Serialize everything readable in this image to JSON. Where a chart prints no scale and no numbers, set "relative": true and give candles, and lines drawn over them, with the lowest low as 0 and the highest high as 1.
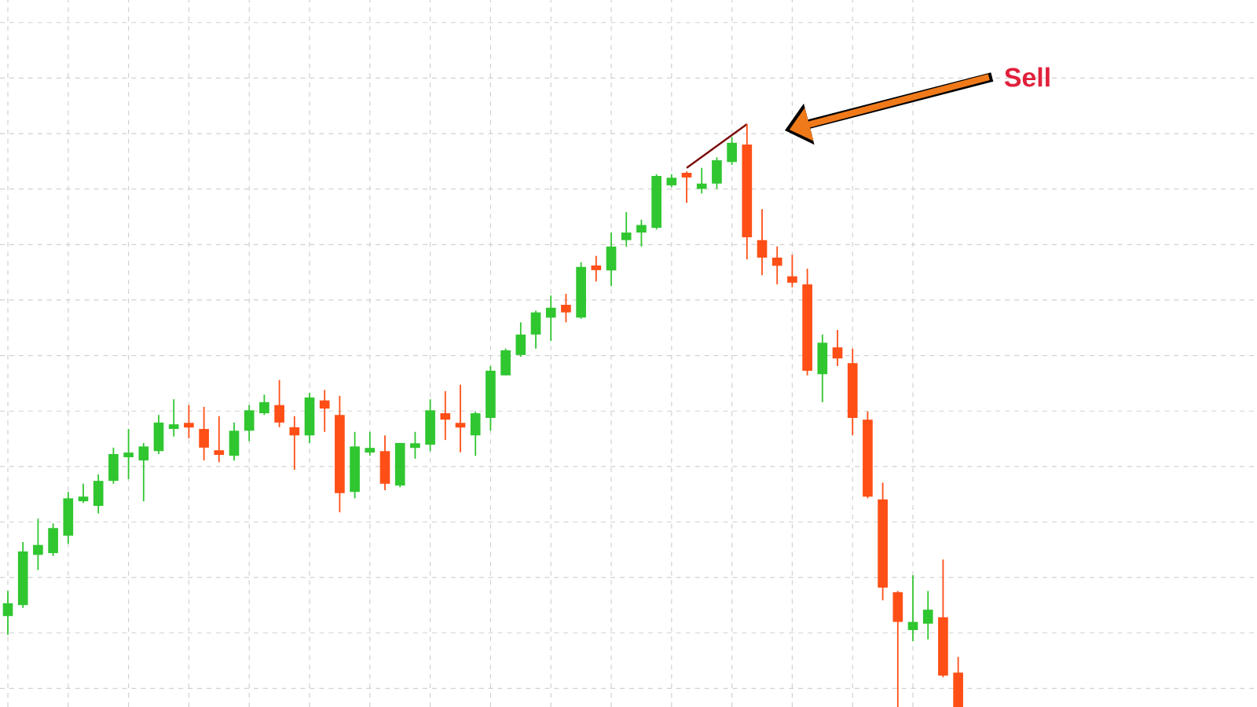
{
  "chart_data": {
    "type": "candlestick",
    "relative": true,
    "grid": true,
    "categories": [
      null,
      null,
      null,
      null,
      null,
      null,
      null,
      null,
      null,
      null,
      null,
      null,
      null,
      null,
      null,
      null,
      null,
      null,
      null,
      null,
      null,
      null,
      null,
      null,
      null,
      null,
      null,
      null,
      null,
      null,
      null,
      null,
      null,
      null,
      null,
      null,
      null,
      null,
      null,
      null,
      null,
      null,
      null,
      null,
      null,
      null,
      null,
      null,
      null,
      null,
      null,
      null,
      null,
      null,
      null,
      null,
      null,
      null,
      null,
      null,
      null,
      null,
      null,
      null
    ],
    "ohlc": [
      [
        0.156,
        0.199,
        0.124,
        0.178
      ],
      [
        0.175,
        0.283,
        0.17,
        0.267
      ],
      [
        0.261,
        0.323,
        0.235,
        0.278
      ],
      [
        0.264,
        0.315,
        0.259,
        0.307
      ],
      [
        0.294,
        0.369,
        0.28,
        0.358
      ],
      [
        0.356,
        0.383,
        0.35,
        0.358
      ],
      [
        0.345,
        0.399,
        0.332,
        0.388
      ],
      [
        0.388,
        0.445,
        0.383,
        0.434
      ],
      [
        0.431,
        0.477,
        0.391,
        0.434
      ],
      [
        0.423,
        0.453,
        0.353,
        0.447
      ],
      [
        0.439,
        0.501,
        0.434,
        0.488
      ],
      [
        0.48,
        0.528,
        0.464,
        0.482
      ],
      [
        0.485,
        0.518,
        0.461,
        0.482
      ],
      [
        0.477,
        0.515,
        0.423,
        0.445
      ],
      [
        0.439,
        0.499,
        0.42,
        0.434
      ],
      [
        0.431,
        0.488,
        0.423,
        0.474
      ],
      [
        0.474,
        0.518,
        0.456,
        0.509
      ],
      [
        0.504,
        0.536,
        0.501,
        0.523
      ],
      [
        0.518,
        0.561,
        0.48,
        0.488
      ],
      [
        0.48,
        0.499,
        0.407,
        0.466
      ],
      [
        0.466,
        0.539,
        0.453,
        0.531
      ],
      [
        0.526,
        0.544,
        0.472,
        0.512
      ],
      [
        0.501,
        0.534,
        0.334,
        0.367
      ],
      [
        0.369,
        0.472,
        0.358,
        0.447
      ],
      [
        0.439,
        0.472,
        0.431,
        0.442
      ],
      [
        0.439,
        0.466,
        0.372,
        0.383
      ],
      [
        0.38,
        0.453,
        0.377,
        0.453
      ],
      [
        0.447,
        0.472,
        0.426,
        0.45
      ],
      [
        0.45,
        0.528,
        0.439,
        0.509
      ],
      [
        0.504,
        0.542,
        0.458,
        0.493
      ],
      [
        0.485,
        0.553,
        0.437,
        0.482
      ],
      [
        0.466,
        0.507,
        0.431,
        0.504
      ],
      [
        0.496,
        0.585,
        0.474,
        0.577
      ],
      [
        0.569,
        0.615,
        0.569,
        0.612
      ],
      [
        0.604,
        0.66,
        0.601,
        0.639
      ],
      [
        0.639,
        0.68,
        0.615,
        0.677
      ],
      [
        0.668,
        0.706,
        0.628,
        0.685
      ],
      [
        0.69,
        0.709,
        0.66,
        0.677
      ],
      [
        0.668,
        0.763,
        0.666,
        0.755
      ],
      [
        0.755,
        0.774,
        0.73,
        0.752
      ],
      [
        0.749,
        0.814,
        0.722,
        0.79
      ],
      [
        0.801,
        0.849,
        0.79,
        0.814
      ],
      [
        0.814,
        0.836,
        0.79,
        0.827
      ],
      [
        0.822,
        0.914,
        0.819,
        0.911
      ],
      [
        0.895,
        0.914,
        0.892,
        0.908
      ],
      [
        0.914,
        0.919,
        0.865,
        0.911
      ],
      [
        0.889,
        0.925,
        0.881,
        0.898
      ],
      [
        0.898,
        0.943,
        0.889,
        0.938
      ],
      [
        0.935,
        0.978,
        0.93,
        0.968
      ],
      [
        0.965,
        1.0,
        0.768,
        0.806
      ],
      [
        0.801,
        0.854,
        0.741,
        0.771
      ],
      [
        0.771,
        0.79,
        0.725,
        0.757
      ],
      [
        0.739,
        0.776,
        0.72,
        0.728
      ],
      [
        0.725,
        0.752,
        0.569,
        0.577
      ],
      [
        0.571,
        0.639,
        0.523,
        0.625
      ],
      [
        0.617,
        0.647,
        0.585,
        0.598
      ],
      [
        0.59,
        0.615,
        0.466,
        0.496
      ],
      [
        0.493,
        0.507,
        0.358,
        0.361
      ],
      [
        0.356,
        0.385,
        0.183,
        0.205
      ],
      [
        0.197,
        0.199,
        0.0,
        0.146
      ],
      [
        0.132,
        0.226,
        0.113,
        0.146
      ],
      [
        0.143,
        0.199,
        0.116,
        0.167
      ],
      [
        0.154,
        0.253,
        0.051,
        0.054
      ],
      [
        0.059,
        0.086,
        0.0,
        0.0
      ]
    ],
    "colors": [
      "#30c630",
      "#30c630",
      "#30c630",
      "#30c630",
      "#30c630",
      "#30c630",
      "#30c630",
      "#30c630",
      "#30c630",
      "#30c630",
      "#30c630",
      "#30c630",
      "#ff4f16",
      "#ff4f16",
      "#ff4f16",
      "#30c630",
      "#30c630",
      "#30c630",
      "#ff4f16",
      "#ff4f16",
      "#30c630",
      "#ff4f16",
      "#ff4f16",
      "#30c630",
      "#30c630",
      "#ff4f16",
      "#30c630",
      "#30c630",
      "#30c630",
      "#ff4f16",
      "#ff4f16",
      "#30c630",
      "#30c630",
      "#30c630",
      "#30c630",
      "#30c630",
      "#30c630",
      "#ff4f16",
      "#30c630",
      "#ff4f16",
      "#30c630",
      "#30c630",
      "#30c630",
      "#30c630",
      "#30c630",
      "#ff4f16",
      "#30c630",
      "#30c630",
      "#30c630",
      "#ff4f16",
      "#ff4f16",
      "#ff4f16",
      "#ff4f16",
      "#ff4f16",
      "#30c630",
      "#ff4f16",
      "#ff4f16",
      "#ff4f16",
      "#ff4f16",
      "#ff4f16",
      "#30c630",
      "#30c630",
      "#ff4f16",
      "#ff4f16"
    ],
    "series": [
      {
        "type": "line",
        "color": "#7a0a0a",
        "values": [
          null,
          null,
          null,
          null,
          null,
          null,
          null,
          null,
          null,
          null,
          null,
          null,
          null,
          null,
          null,
          null,
          null,
          null,
          null,
          null,
          null,
          null,
          null,
          null,
          null,
          null,
          null,
          null,
          null,
          null,
          null,
          null,
          null,
          null,
          null,
          null,
          null,
          null,
          null,
          null,
          null,
          null,
          null,
          null,
          null,
          0.925,
          null,
          null,
          null,
          1.0,
          null,
          null,
          null,
          null,
          null,
          null,
          null,
          null,
          null,
          null,
          null,
          null,
          null,
          null
        ]
      }
    ],
    "annotations": [
      "Sell"
    ]
  }
}
